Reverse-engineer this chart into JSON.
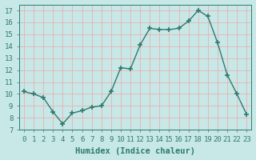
{
  "x": [
    0,
    1,
    2,
    3,
    4,
    5,
    6,
    7,
    8,
    9,
    10,
    11,
    12,
    13,
    14,
    15,
    16,
    17,
    18,
    19,
    20,
    21,
    22,
    23
  ],
  "y": [
    10.2,
    10.0,
    9.7,
    8.5,
    7.5,
    8.4,
    8.6,
    8.9,
    9.0,
    10.2,
    12.2,
    12.1,
    14.1,
    15.5,
    15.4,
    15.4,
    15.5,
    16.1,
    17.0,
    16.5,
    14.3,
    11.6,
    10.0,
    8.3
  ],
  "line_color": "#2d7a6e",
  "marker": "+",
  "marker_color": "#2d7a6e",
  "bg_color": "#c8e8e8",
  "grid_color": "#e8b0b0",
  "xlabel": "Humidex (Indice chaleur)",
  "xlim": [
    -0.5,
    23.5
  ],
  "ylim": [
    7,
    17.5
  ],
  "yticks": [
    7,
    8,
    9,
    10,
    11,
    12,
    13,
    14,
    15,
    16,
    17
  ],
  "xticks": [
    0,
    1,
    2,
    3,
    4,
    5,
    6,
    7,
    8,
    9,
    10,
    11,
    12,
    13,
    14,
    15,
    16,
    17,
    18,
    19,
    20,
    21,
    22,
    23
  ],
  "font_color": "#2d7a6e",
  "linewidth": 1.0,
  "markersize": 4,
  "tick_fontsize": 6.5,
  "xlabel_fontsize": 7.5
}
